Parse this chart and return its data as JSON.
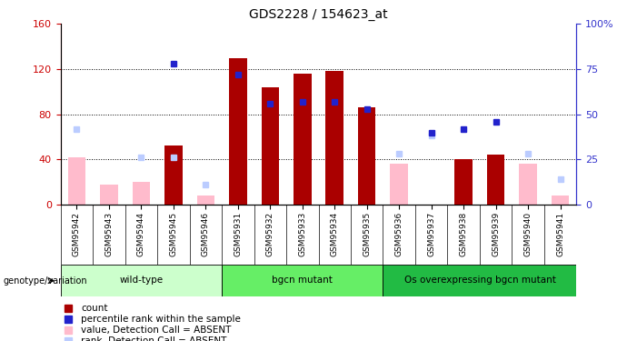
{
  "title": "GDS2228 / 154623_at",
  "samples": [
    "GSM95942",
    "GSM95943",
    "GSM95944",
    "GSM95945",
    "GSM95946",
    "GSM95931",
    "GSM95932",
    "GSM95933",
    "GSM95934",
    "GSM95935",
    "GSM95936",
    "GSM95937",
    "GSM95938",
    "GSM95939",
    "GSM95940",
    "GSM95941"
  ],
  "groups": [
    {
      "label": "wild-type",
      "color": "#ccffcc",
      "indices": [
        0,
        1,
        2,
        3,
        4
      ]
    },
    {
      "label": "bgcn mutant",
      "color": "#66ee66",
      "indices": [
        5,
        6,
        7,
        8,
        9
      ]
    },
    {
      "label": "Os overexpressing bgcn mutant",
      "color": "#22bb44",
      "indices": [
        10,
        11,
        12,
        13,
        14,
        15
      ]
    }
  ],
  "count_values": [
    null,
    null,
    null,
    52,
    null,
    130,
    104,
    116,
    118,
    86,
    null,
    null,
    40,
    44,
    null,
    null
  ],
  "rank_values": [
    null,
    null,
    null,
    78,
    null,
    72,
    56,
    57,
    57,
    53,
    null,
    40,
    42,
    46,
    null,
    null
  ],
  "absent_count_values": [
    42,
    18,
    20,
    null,
    8,
    null,
    null,
    null,
    null,
    null,
    36,
    null,
    null,
    null,
    36,
    8
  ],
  "absent_rank_values": [
    42,
    null,
    26,
    26,
    11,
    null,
    null,
    null,
    null,
    null,
    28,
    38,
    null,
    null,
    28,
    14
  ],
  "ylim_left": [
    0,
    160
  ],
  "ylim_right": [
    0,
    100
  ],
  "yticks_left": [
    0,
    40,
    80,
    120,
    160
  ],
  "yticks_right": [
    0,
    25,
    50,
    75,
    100
  ],
  "ylabel_left_color": "#cc0000",
  "ylabel_right_color": "#3333cc",
  "count_color": "#aa0000",
  "rank_color": "#2222cc",
  "absent_count_color": "#ffbbcc",
  "absent_rank_color": "#bbccff",
  "plot_bg": "#ffffff",
  "xtick_bg": "#cccccc",
  "group_colors": [
    "#ccffcc",
    "#66ee66",
    "#22bb44"
  ]
}
